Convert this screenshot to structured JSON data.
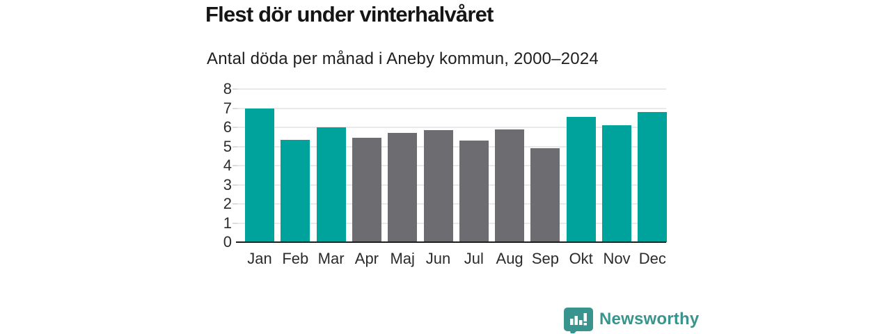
{
  "header": {
    "title": "Flest dör under vinterhalvåret",
    "subtitle": "Antal döda per månad i Aneby kommun, 2000–2024"
  },
  "chart_data": {
    "type": "bar",
    "title": "Flest dör under vinterhalvåret",
    "subtitle": "Antal döda per månad i Aneby kommun, 2000–2024",
    "categories": [
      "Jan",
      "Feb",
      "Mar",
      "Apr",
      "Maj",
      "Jun",
      "Jul",
      "Aug",
      "Sep",
      "Okt",
      "Nov",
      "Dec"
    ],
    "values": [
      7.0,
      5.35,
      6.0,
      5.45,
      5.7,
      5.85,
      5.3,
      5.9,
      4.9,
      6.55,
      6.1,
      6.8
    ],
    "highlighted": [
      true,
      true,
      true,
      false,
      false,
      false,
      false,
      false,
      false,
      true,
      true,
      true
    ],
    "highlight_color": "#00a39b",
    "base_color": "#6d6c71",
    "xlabel": "",
    "ylabel": "",
    "ylim": [
      0,
      8
    ],
    "yticks": [
      0,
      1,
      2,
      3,
      4,
      5,
      6,
      7,
      8
    ],
    "grid": "horizontal",
    "legend": "none"
  },
  "colors": {
    "grid": "#e9e9e9",
    "tick_mark": "#dcdcdc",
    "axis_line": "#1c1c1c",
    "tick_label": "#2b2b2b",
    "brand": "#3a948e"
  },
  "footer": {
    "brand": "Newsworthy"
  }
}
